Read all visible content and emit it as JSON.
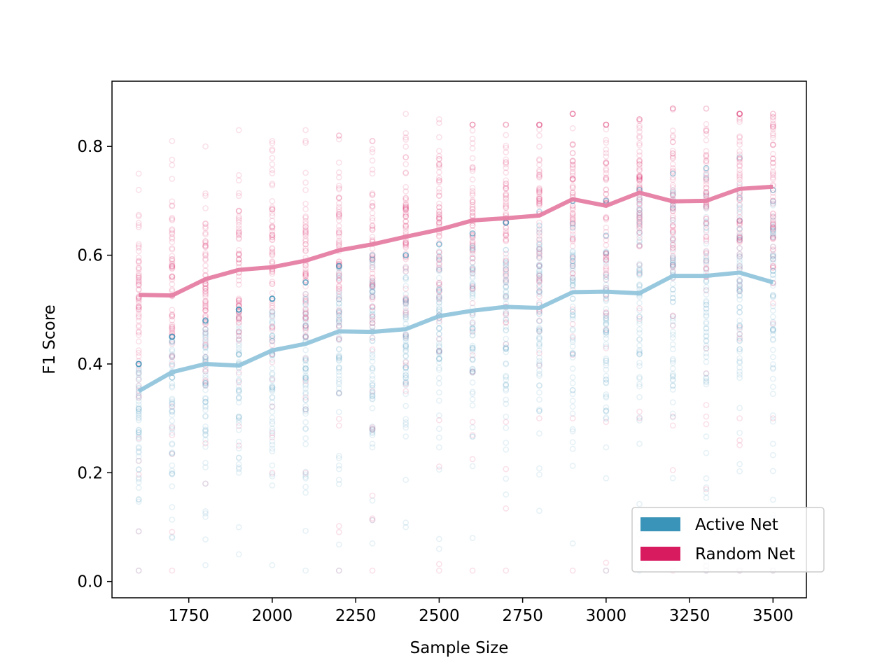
{
  "chart_data": {
    "type": "scatter",
    "xlabel": "Sample Size",
    "ylabel": "F1 Score",
    "xlim": [
      1520,
      3600
    ],
    "ylim": [
      -0.03,
      0.92
    ],
    "xticks": [
      1750,
      2000,
      2250,
      2500,
      2750,
      3000,
      3250,
      3500
    ],
    "xtick_labels": [
      "1750",
      "2000",
      "2250",
      "2500",
      "2750",
      "3000",
      "3250",
      "3500"
    ],
    "yticks": [
      0.0,
      0.2,
      0.4,
      0.6,
      0.8
    ],
    "ytick_labels": [
      "0.0",
      "0.2",
      "0.4",
      "0.6",
      "0.8"
    ],
    "grid": false,
    "legend_position": "lower-right",
    "x": [
      1600,
      1700,
      1800,
      1900,
      2000,
      2100,
      2200,
      2300,
      2400,
      2500,
      2600,
      2700,
      2800,
      2900,
      3000,
      3100,
      3200,
      3300,
      3400,
      3500
    ],
    "series": [
      {
        "name": "Active Net",
        "color": "#3a93b8",
        "mean_values": [
          0.35,
          0.385,
          0.4,
          0.397,
          0.425,
          0.437,
          0.46,
          0.459,
          0.464,
          0.488,
          0.498,
          0.505,
          0.503,
          0.532,
          0.533,
          0.53,
          0.562,
          0.562,
          0.568,
          0.55
        ],
        "scatter_range": [
          [
            0.02,
            0.4
          ],
          [
            0.08,
            0.45
          ],
          [
            0.03,
            0.48
          ],
          [
            0.05,
            0.5
          ],
          [
            0.03,
            0.52
          ],
          [
            0.02,
            0.55
          ],
          [
            0.02,
            0.58
          ],
          [
            0.07,
            0.6
          ],
          [
            0.1,
            0.6
          ],
          [
            0.06,
            0.62
          ],
          [
            0.08,
            0.64
          ],
          [
            0.16,
            0.66
          ],
          [
            0.13,
            0.68
          ],
          [
            0.07,
            0.7
          ],
          [
            0.02,
            0.7
          ],
          [
            0.02,
            0.72
          ],
          [
            0.19,
            0.75
          ],
          [
            0.02,
            0.76
          ],
          [
            0.02,
            0.78
          ],
          [
            0.02,
            0.72
          ]
        ]
      },
      {
        "name": "Random Net",
        "color": "#d81b5f",
        "mean_values": [
          0.527,
          0.526,
          0.556,
          0.573,
          0.578,
          0.59,
          0.609,
          0.62,
          0.634,
          0.647,
          0.664,
          0.668,
          0.673,
          0.703,
          0.691,
          0.715,
          0.699,
          0.7,
          0.722,
          0.726
        ],
        "scatter_range": [
          [
            0.02,
            0.75
          ],
          [
            0.02,
            0.81
          ],
          [
            0.18,
            0.8
          ],
          [
            0.25,
            0.83
          ],
          [
            0.2,
            0.81
          ],
          [
            0.2,
            0.83
          ],
          [
            0.02,
            0.82
          ],
          [
            0.02,
            0.81
          ],
          [
            0.35,
            0.86
          ],
          [
            0.02,
            0.85
          ],
          [
            0.02,
            0.84
          ],
          [
            0.02,
            0.84
          ],
          [
            0.3,
            0.84
          ],
          [
            0.02,
            0.86
          ],
          [
            0.02,
            0.84
          ],
          [
            0.3,
            0.85
          ],
          [
            0.02,
            0.87
          ],
          [
            0.02,
            0.87
          ],
          [
            0.02,
            0.86
          ],
          [
            0.02,
            0.86
          ]
        ]
      }
    ]
  }
}
